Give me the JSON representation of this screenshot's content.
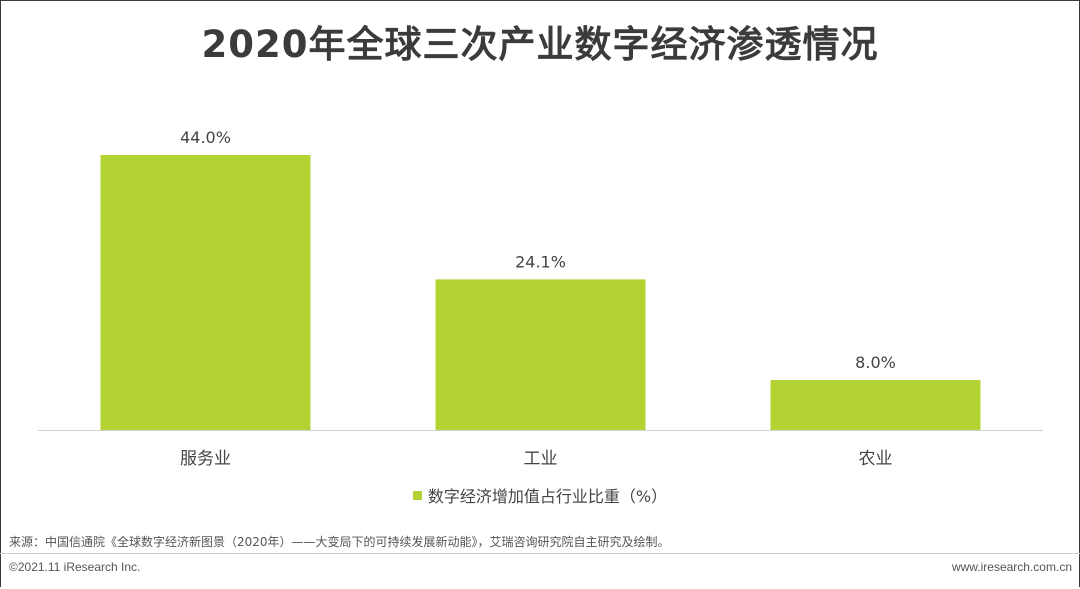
{
  "chart_data": {
    "type": "bar",
    "title": "2020年全球三次产业数字经济渗透情况",
    "categories": [
      "服务业",
      "工业",
      "农业"
    ],
    "series": [
      {
        "name": "数字经济增加值占行业比重（%）",
        "values": [
          44.0,
          24.1,
          8.0
        ],
        "labels": [
          "44.0%",
          "24.1%",
          "8.0%"
        ],
        "color": "#b3d334"
      }
    ],
    "ylim": [
      0,
      50
    ],
    "grid": false,
    "legend_position": "bottom"
  },
  "source": "来源：中国信通院《全球数字经济新图景（2020年）——大变局下的可持续发展新动能》，艾瑞咨询研究院自主研究及绘制。",
  "footer": {
    "copyright": "©2021.11 iResearch Inc.",
    "website": "www.iresearch.com.cn"
  }
}
